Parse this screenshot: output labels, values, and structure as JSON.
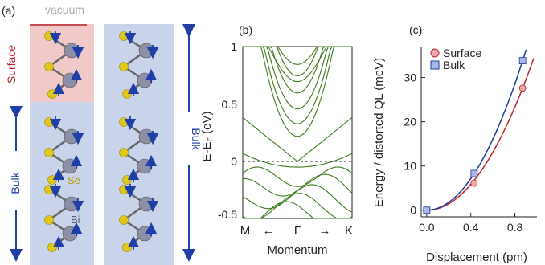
{
  "colors": {
    "surface": "#f2c9c9",
    "bulk_panel": "#c9d3ea",
    "band": "#3d7a1f",
    "surface_series": "#b8262b",
    "bulk_series": "#1a3c9c",
    "se_atom": "#e0c81a",
    "bi_atom": "#8c8fa6",
    "arrow": "#1f3fa8"
  },
  "panel_a": {
    "label": "(a)",
    "vacuum_label": "vacuum",
    "surface_label": "Surface",
    "bulk_label_left": "Bulk",
    "bulk_label_right": "Bulk",
    "se_label": "Se",
    "bi_label": "Bi"
  },
  "panel_b": {
    "label": "(b)",
    "ylabel": "E-E",
    "ylabel_sub": "F",
    "ylabel_unit": " (eV)",
    "yticks": [
      "1",
      "0.5",
      "0",
      "-0.5"
    ],
    "xlabel": "Momentum",
    "k_left": "M",
    "k_mid": "Γ",
    "k_right": "K"
  },
  "chart_data": {
    "type": "scatter",
    "title": "",
    "xlabel": "Displacement (pm)",
    "ylabel": "Energy / distorted QL (meV)",
    "xlim": [
      -0.05,
      1.0
    ],
    "ylim": [
      -1.5,
      37
    ],
    "xticks": [
      "0.0",
      "0.4",
      "0.8"
    ],
    "yticks": [
      "0",
      "10",
      "20",
      "30"
    ],
    "legend_position": "top-left",
    "series": [
      {
        "name": "Surface",
        "x": [
          0.0,
          0.43,
          0.87
        ],
        "y": [
          0.0,
          6.1,
          27.6
        ],
        "marker": "circle"
      },
      {
        "name": "Bulk",
        "x": [
          0.0,
          0.43,
          0.87
        ],
        "y": [
          0.0,
          8.3,
          33.8
        ],
        "marker": "square"
      }
    ],
    "panel_label": "(c)"
  }
}
